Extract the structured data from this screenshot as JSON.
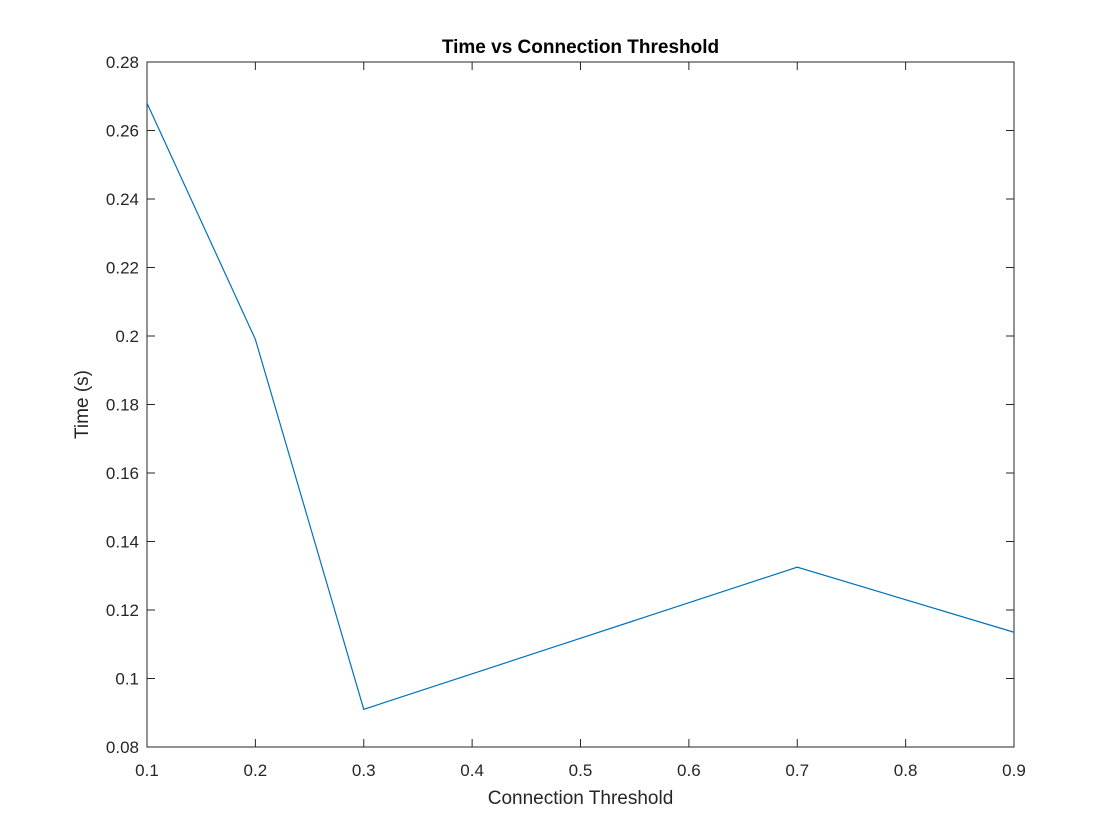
{
  "chart_data": {
    "type": "line",
    "title": "Time vs Connection Threshold",
    "xlabel": "Connection Threshold",
    "ylabel": "Time (s)",
    "xlim": [
      0.1,
      0.9
    ],
    "ylim": [
      0.08,
      0.28
    ],
    "x_ticks": [
      "0.1",
      "0.2",
      "0.3",
      "0.4",
      "0.5",
      "0.6",
      "0.7",
      "0.8",
      "0.9"
    ],
    "y_ticks": [
      "0.08",
      "0.1",
      "0.12",
      "0.14",
      "0.16",
      "0.18",
      "0.2",
      "0.22",
      "0.24",
      "0.26",
      "0.28"
    ],
    "grid": false,
    "series": [
      {
        "color": "#0072BD",
        "points": [
          {
            "x": 0.1,
            "y": 0.268
          },
          {
            "x": 0.2,
            "y": 0.199
          },
          {
            "x": 0.3,
            "y": 0.091
          },
          {
            "x": 0.7,
            "y": 0.1325
          },
          {
            "x": 0.9,
            "y": 0.1135
          }
        ]
      }
    ]
  }
}
